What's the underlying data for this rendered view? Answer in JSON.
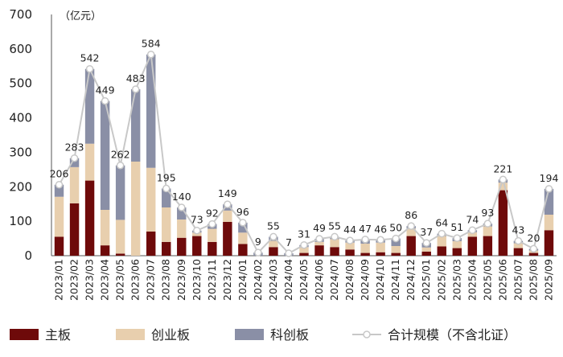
{
  "chart_data": {
    "type": "bar",
    "stacked": true,
    "unit": "（亿元）",
    "ylim": [
      0,
      700
    ],
    "yticks": [
      "0",
      "100",
      "200",
      "300",
      "400",
      "500",
      "600",
      "700"
    ],
    "categories": [
      "2023/01",
      "2023/02",
      "2023/03",
      "2023/04",
      "2023/05",
      "2023/06",
      "2023/07",
      "2023/08",
      "2023/09",
      "2023/10",
      "2023/11",
      "2023/12",
      "2024/01",
      "2024/02",
      "2024/03",
      "2024/04",
      "2024/05",
      "2024/06",
      "2024/07",
      "2024/08",
      "2024/09",
      "2024/10",
      "2024/11",
      "2024/12",
      "2025/01",
      "2025/02",
      "2025/03",
      "2025/04",
      "2025/05",
      "2025/06",
      "2025/07",
      "2025/08",
      "2025/09"
    ],
    "series": [
      {
        "name": "主板",
        "color": "#6e0a0a",
        "values": [
          55,
          152,
          218,
          30,
          6,
          0,
          70,
          40,
          52,
          57,
          40,
          98,
          34,
          0,
          25,
          0,
          8,
          30,
          25,
          18,
          8,
          10,
          8,
          57,
          12,
          27,
          22,
          55,
          57,
          190,
          22,
          8,
          74
        ]
      },
      {
        "name": "创业板",
        "color": "#e8cfae",
        "values": [
          116,
          105,
          107,
          103,
          98,
          273,
          185,
          100,
          53,
          10,
          38,
          33,
          33,
          0,
          18,
          0,
          17,
          10,
          23,
          20,
          27,
          28,
          20,
          22,
          12,
          30,
          20,
          13,
          28,
          22,
          14,
          7,
          45
        ]
      },
      {
        "name": "科创板",
        "color": "#8a8fa6",
        "values": [
          35,
          26,
          217,
          316,
          158,
          210,
          329,
          55,
          35,
          6,
          14,
          18,
          29,
          9,
          12,
          7,
          6,
          9,
          7,
          6,
          12,
          8,
          22,
          7,
          13,
          7,
          9,
          6,
          8,
          9,
          7,
          5,
          75
        ]
      }
    ],
    "line": {
      "name": "合计规模（不含北证）",
      "color": "#c8c8c8",
      "values": [
        206,
        283,
        542,
        449,
        262,
        483,
        584,
        195,
        140,
        73,
        92,
        149,
        96,
        9,
        55,
        7,
        31,
        49,
        55,
        44,
        47,
        46,
        50,
        86,
        37,
        64,
        51,
        74,
        93,
        221,
        43,
        20,
        194
      ]
    },
    "legend": {
      "position": "bottom"
    }
  }
}
